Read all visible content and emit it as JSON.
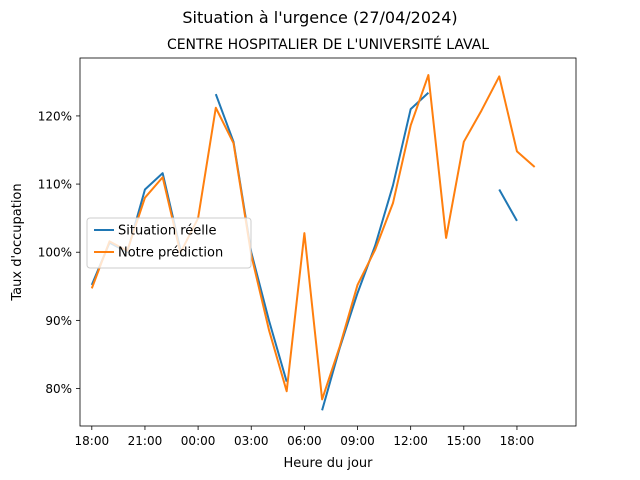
{
  "chart_data": {
    "type": "line",
    "suptitle": "Situation à l'urgence (27/04/2024)",
    "title": "CENTRE HOSPITALIER DE L'UNIVERSITÉ LAVAL",
    "xlabel": "Heure du jour",
    "ylabel": "Taux d'occupation",
    "x_ticks": [
      "18:00",
      "21:00",
      "00:00",
      "03:00",
      "06:00",
      "09:00",
      "12:00",
      "15:00",
      "18:00"
    ],
    "y_ticks": [
      "80%",
      "90%",
      "100%",
      "110%",
      "120%"
    ],
    "y_tick_values": [
      80,
      90,
      100,
      110,
      120
    ],
    "xlim": [
      "26/04 17:20",
      "27/04 21:20"
    ],
    "ylim": [
      74.5,
      128.5
    ],
    "x": [
      "26/04 18:00",
      "26/04 19:00",
      "26/04 20:00",
      "26/04 21:00",
      "26/04 22:00",
      "26/04 23:00",
      "27/04 00:00",
      "27/04 01:00",
      "27/04 02:00",
      "27/04 03:00",
      "27/04 04:00",
      "27/04 05:00",
      "27/04 06:00",
      "27/04 07:00",
      "27/04 08:00",
      "27/04 09:00",
      "27/04 10:00",
      "27/04 11:00",
      "27/04 12:00",
      "27/04 13:00",
      "27/04 14:00",
      "27/04 15:00",
      "27/04 16:00",
      "27/04 17:00",
      "27/04 18:00",
      "27/04 19:00"
    ],
    "series": [
      {
        "name": "Situation réelle",
        "color": "#1f77b4",
        "values": [
          95.2,
          101.4,
          100.0,
          109.2,
          111.6,
          100.4,
          null,
          123.2,
          116.2,
          100.0,
          90.0,
          81.0,
          null,
          76.8,
          86.0,
          94.0,
          101.0,
          109.8,
          121.0,
          123.4,
          null,
          null,
          null,
          109.2,
          104.6,
          null
        ]
      },
      {
        "name": "Notre prédiction",
        "color": "#ff7f0e",
        "values": [
          94.7,
          101.6,
          100.2,
          108.0,
          111.0,
          99.9,
          105.0,
          121.2,
          116.0,
          99.6,
          88.6,
          79.6,
          102.8,
          78.4,
          86.2,
          95.2,
          100.4,
          107.2,
          118.6,
          126.0,
          102.1,
          116.2,
          120.8,
          125.8,
          114.8,
          112.5
        ]
      }
    ],
    "legend_position": "center-left",
    "grid": false
  }
}
